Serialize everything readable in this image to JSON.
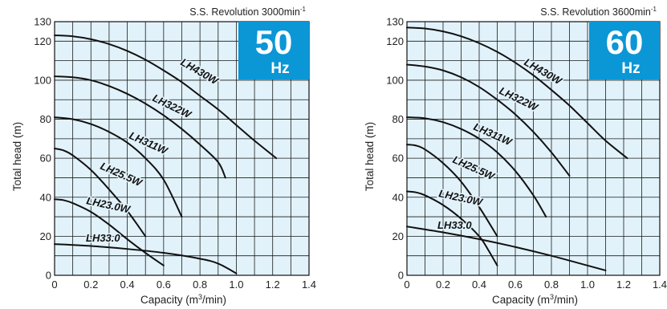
{
  "chart_data": [
    {
      "type": "line",
      "revolution_label": "S.S. Revolution 3000min",
      "revolution_sup": "-1",
      "badge": {
        "number": "50",
        "unit": "Hz",
        "color": "#0b96d6"
      },
      "xlabel": "Capacity (m",
      "xlabel_sup": "3",
      "xlabel_tail": "/min)",
      "ylabel": "Total head (m)",
      "xlim": [
        0,
        1.4
      ],
      "ylim": [
        0,
        130
      ],
      "x_ticks": [
        "0",
        "0.2",
        "0.4",
        "0.6",
        "0.8",
        "1.0",
        "1.2",
        "1.4"
      ],
      "y_ticks": [
        "0",
        "20",
        "40",
        "60",
        "80",
        "100",
        "120",
        "130"
      ],
      "background_color": "#e2f2fb",
      "grid": true,
      "series": [
        {
          "name": "LH430W",
          "points": [
            [
              0,
              123
            ],
            [
              0.1,
              122.5
            ],
            [
              0.2,
              121
            ],
            [
              0.3,
              118.5
            ],
            [
              0.4,
              115
            ],
            [
              0.5,
              110.5
            ],
            [
              0.6,
              105
            ],
            [
              0.7,
              99
            ],
            [
              0.8,
              92
            ],
            [
              0.9,
              85
            ],
            [
              1.0,
              77
            ],
            [
              1.1,
              69
            ],
            [
              1.22,
              60
            ]
          ]
        },
        {
          "name": "LH322W",
          "points": [
            [
              0,
              102
            ],
            [
              0.1,
              101.5
            ],
            [
              0.2,
              100
            ],
            [
              0.3,
              97
            ],
            [
              0.4,
              93
            ],
            [
              0.5,
              88
            ],
            [
              0.6,
              82
            ],
            [
              0.7,
              75
            ],
            [
              0.8,
              67
            ],
            [
              0.9,
              58
            ],
            [
              0.94,
              50
            ]
          ]
        },
        {
          "name": "LH311W",
          "points": [
            [
              0,
              81
            ],
            [
              0.1,
              80
            ],
            [
              0.2,
              77.5
            ],
            [
              0.3,
              73.5
            ],
            [
              0.4,
              68
            ],
            [
              0.5,
              60
            ],
            [
              0.6,
              49
            ],
            [
              0.7,
              30
            ]
          ]
        },
        {
          "name": "LH25.5W",
          "points": [
            [
              0,
              65
            ],
            [
              0.05,
              64
            ],
            [
              0.1,
              61.5
            ],
            [
              0.2,
              54
            ],
            [
              0.3,
              44
            ],
            [
              0.4,
              33
            ],
            [
              0.5,
              20
            ]
          ]
        },
        {
          "name": "LH23.0W",
          "points": [
            [
              0,
              39
            ],
            [
              0.05,
              38.5
            ],
            [
              0.1,
              37
            ],
            [
              0.2,
              32.5
            ],
            [
              0.3,
              26
            ],
            [
              0.4,
              18.5
            ],
            [
              0.5,
              11.5
            ],
            [
              0.6,
              5
            ]
          ]
        },
        {
          "name": "LH33.0",
          "points": [
            [
              0,
              16
            ],
            [
              0.2,
              15
            ],
            [
              0.4,
              13.5
            ],
            [
              0.6,
              11.5
            ],
            [
              0.8,
              8.5
            ],
            [
              0.9,
              6
            ],
            [
              1.0,
              1
            ]
          ]
        }
      ]
    },
    {
      "type": "line",
      "revolution_label": "S.S. Revolution 3600min",
      "revolution_sup": "-1",
      "badge": {
        "number": "60",
        "unit": "Hz",
        "color": "#0b96d6"
      },
      "xlabel": "Capacity (m",
      "xlabel_sup": "3",
      "xlabel_tail": "/min)",
      "ylabel": "Total head (m)",
      "xlim": [
        0,
        1.4
      ],
      "ylim": [
        0,
        130
      ],
      "x_ticks": [
        "0",
        "0.2",
        "0.4",
        "0.6",
        "0.8",
        "1.0",
        "1.2",
        "1.4"
      ],
      "y_ticks": [
        "0",
        "20",
        "40",
        "60",
        "80",
        "100",
        "120",
        "130"
      ],
      "background_color": "#e2f2fb",
      "grid": true,
      "series": [
        {
          "name": "LH430W",
          "points": [
            [
              0,
              127
            ],
            [
              0.1,
              126.5
            ],
            [
              0.2,
              125
            ],
            [
              0.3,
              122.5
            ],
            [
              0.4,
              119
            ],
            [
              0.5,
              114.5
            ],
            [
              0.6,
              109
            ],
            [
              0.7,
              102.5
            ],
            [
              0.8,
              95
            ],
            [
              0.9,
              87
            ],
            [
              1.0,
              78
            ],
            [
              1.1,
              69
            ],
            [
              1.22,
              60
            ]
          ]
        },
        {
          "name": "LH322W",
          "points": [
            [
              0,
              108
            ],
            [
              0.1,
              107
            ],
            [
              0.2,
              105
            ],
            [
              0.3,
              101.5
            ],
            [
              0.4,
              96.5
            ],
            [
              0.5,
              90
            ],
            [
              0.6,
              82.5
            ],
            [
              0.7,
              73.5
            ],
            [
              0.8,
              63
            ],
            [
              0.9,
              51
            ]
          ]
        },
        {
          "name": "LH311W",
          "points": [
            [
              0,
              81
            ],
            [
              0.1,
              80.5
            ],
            [
              0.2,
              78.5
            ],
            [
              0.3,
              75
            ],
            [
              0.4,
              70
            ],
            [
              0.5,
              63
            ],
            [
              0.6,
              53.5
            ],
            [
              0.7,
              41
            ],
            [
              0.77,
              30
            ]
          ]
        },
        {
          "name": "LH25.5W",
          "points": [
            [
              0,
              67
            ],
            [
              0.05,
              66.5
            ],
            [
              0.1,
              64.5
            ],
            [
              0.2,
              57.5
            ],
            [
              0.3,
              48
            ],
            [
              0.4,
              35
            ],
            [
              0.5,
              20
            ]
          ]
        },
        {
          "name": "LH23.0W",
          "points": [
            [
              0,
              43
            ],
            [
              0.05,
              42.5
            ],
            [
              0.1,
              41
            ],
            [
              0.2,
              36
            ],
            [
              0.3,
              29
            ],
            [
              0.4,
              20
            ],
            [
              0.45,
              13
            ],
            [
              0.5,
              5
            ]
          ]
        },
        {
          "name": "LH33.0",
          "points": [
            [
              0,
              25
            ],
            [
              0.2,
              22
            ],
            [
              0.4,
              18.5
            ],
            [
              0.6,
              14.5
            ],
            [
              0.8,
              10
            ],
            [
              1.0,
              5
            ],
            [
              1.1,
              2.5
            ]
          ]
        }
      ]
    }
  ]
}
